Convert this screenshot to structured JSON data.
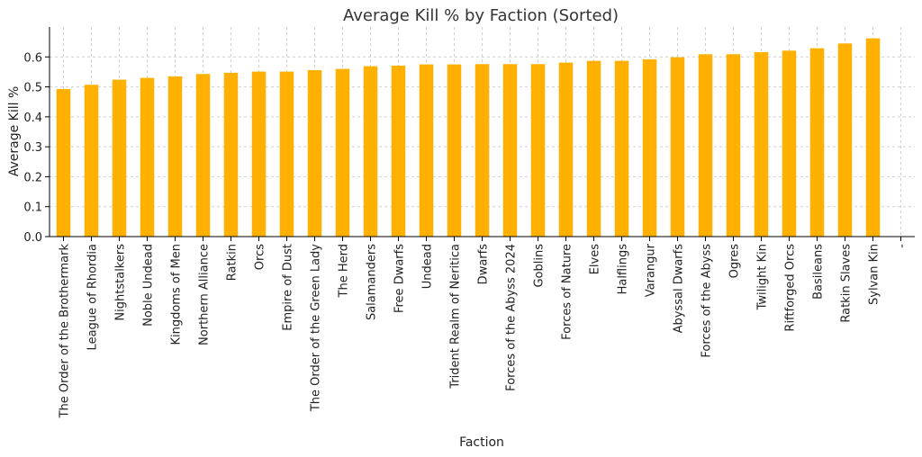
{
  "chart_data": {
    "type": "bar",
    "title": "Average Kill % by Faction (Sorted)",
    "xlabel": "Faction",
    "ylabel": "Average Kill %",
    "ylim": [
      0,
      0.7
    ],
    "yticks": [
      "0.0",
      "0.1",
      "0.2",
      "0.3",
      "0.4",
      "0.5",
      "0.6"
    ],
    "grid": true,
    "bar_color": "#FFB000",
    "categories": [
      "The Order of the Brothermark",
      "League of Rhordia",
      "Nightstalkers",
      "Noble Undead",
      "Kingdoms of Men",
      "Northern Alliance",
      "Ratkin",
      "Orcs",
      "Empire of Dust",
      "The Order of the Green Lady",
      "The Herd",
      "Salamanders",
      "Free Dwarfs",
      "Undead",
      "Trident Realm of Neritica",
      "Dwarfs",
      "Forces of the Abyss 2024",
      "Goblins",
      "Forces of Nature",
      "Elves",
      "Halflings",
      "Varangur",
      "Abyssal Dwarfs",
      "Forces of the Abyss",
      "Ogres",
      "Twilight Kin",
      "Riftforged Orcs",
      "Basileans",
      "Ratkin Slaves",
      "Sylvan Kin",
      "-"
    ],
    "values": [
      0.493,
      0.507,
      0.524,
      0.53,
      0.535,
      0.543,
      0.547,
      0.551,
      0.551,
      0.556,
      0.56,
      0.569,
      0.571,
      0.575,
      0.575,
      0.576,
      0.576,
      0.576,
      0.581,
      0.587,
      0.587,
      0.592,
      0.599,
      0.609,
      0.609,
      0.616,
      0.621,
      0.629,
      0.645,
      0.662,
      null
    ]
  }
}
